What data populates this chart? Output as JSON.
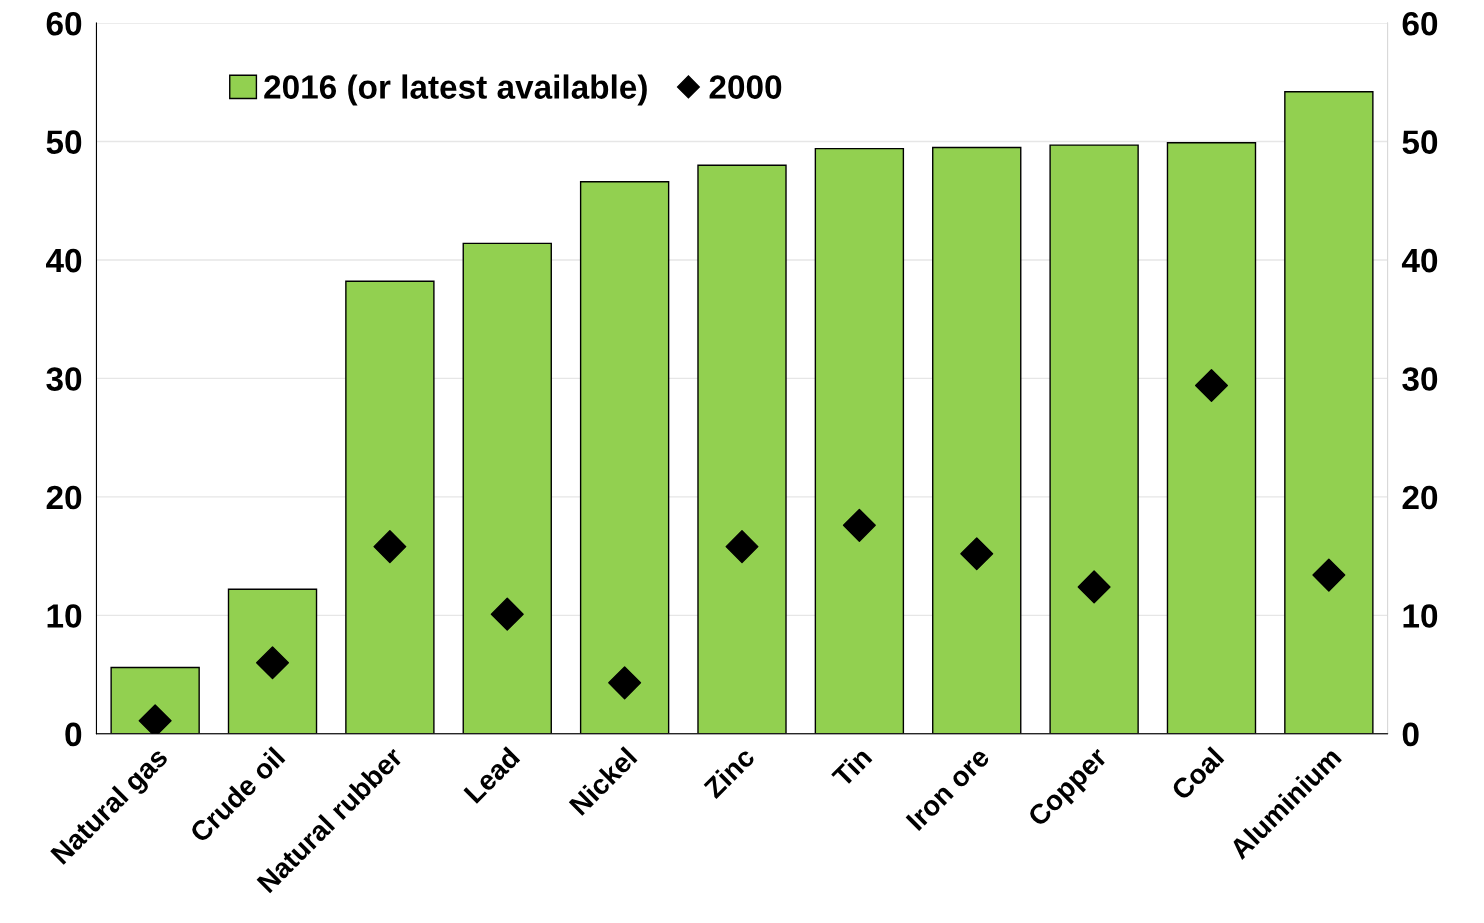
{
  "chart_data": {
    "type": "bar",
    "categories": [
      "Natural gas",
      "Crude oil",
      "Natural rubber",
      "Lead",
      "Nickel",
      "Zinc",
      "Tin",
      "Iron ore",
      "Copper",
      "Coal",
      "Aluminium"
    ],
    "series": [
      {
        "name": "2016 (or latest available)",
        "color": "#92d050",
        "values": [
          5.6,
          12.2,
          38.2,
          41.4,
          46.6,
          48.0,
          49.4,
          49.5,
          49.7,
          49.9,
          54.2
        ]
      },
      {
        "name": "2000",
        "type": "scatter",
        "color": "#000000",
        "marker": "diamond",
        "values": [
          1.1,
          6.0,
          15.8,
          10.1,
          4.3,
          15.8,
          17.6,
          15.2,
          12.4,
          29.4,
          13.4
        ]
      }
    ],
    "ylim": [
      0,
      60
    ],
    "yticks": [
      0,
      10,
      20,
      30,
      40,
      50,
      60
    ],
    "y2lim": [
      0,
      60
    ],
    "y2ticks": [
      0,
      10,
      20,
      30,
      40,
      50,
      60
    ],
    "grid": "y",
    "legend": "top left"
  }
}
